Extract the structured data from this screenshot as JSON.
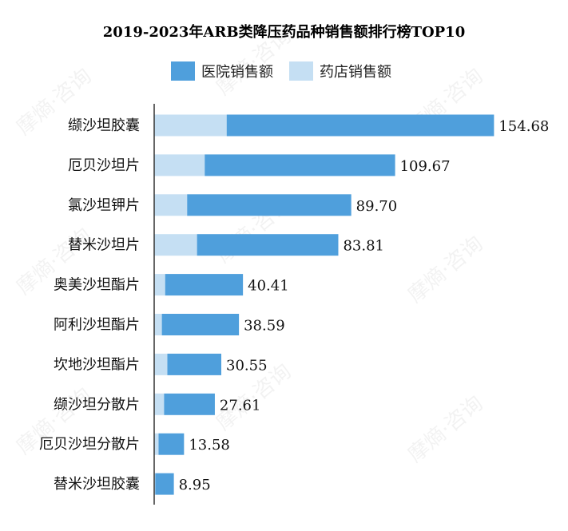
{
  "chart_data": {
    "type": "bar",
    "orientation": "horizontal",
    "stacked": true,
    "title": "2019-2023年ARB类降压药品种销售额排行榜TOP10",
    "categories": [
      "缬沙坦胶囊",
      "厄贝沙坦片",
      "氯沙坦钾片",
      "替米沙坦片",
      "奥美沙坦酯片",
      "阿利沙坦酯片",
      "坎地沙坦酯片",
      "缬沙坦分散片",
      "厄贝沙坦分散片",
      "替米沙坦胶囊"
    ],
    "series": [
      {
        "name": "药店销售额",
        "color": "#c5dff3",
        "values": [
          33.0,
          23.0,
          15.0,
          19.5,
          5.0,
          3.5,
          6.0,
          4.5,
          2.0,
          0.5
        ]
      },
      {
        "name": "医院销售额",
        "color": "#4f9fdc",
        "values": [
          121.68,
          86.67,
          74.7,
          64.31,
          35.41,
          35.09,
          24.55,
          23.11,
          11.58,
          8.45
        ]
      }
    ],
    "totals": [
      "154.68",
      "109.67",
      "89.70",
      "83.81",
      "40.41",
      "38.59",
      "30.55",
      "27.61",
      "13.58",
      "8.95"
    ],
    "xlim": [
      0,
      170
    ],
    "legend_placement": "top",
    "legend": [
      "医院销售额",
      "药店销售额"
    ],
    "grid": false
  },
  "watermark": "摩熵·咨询"
}
